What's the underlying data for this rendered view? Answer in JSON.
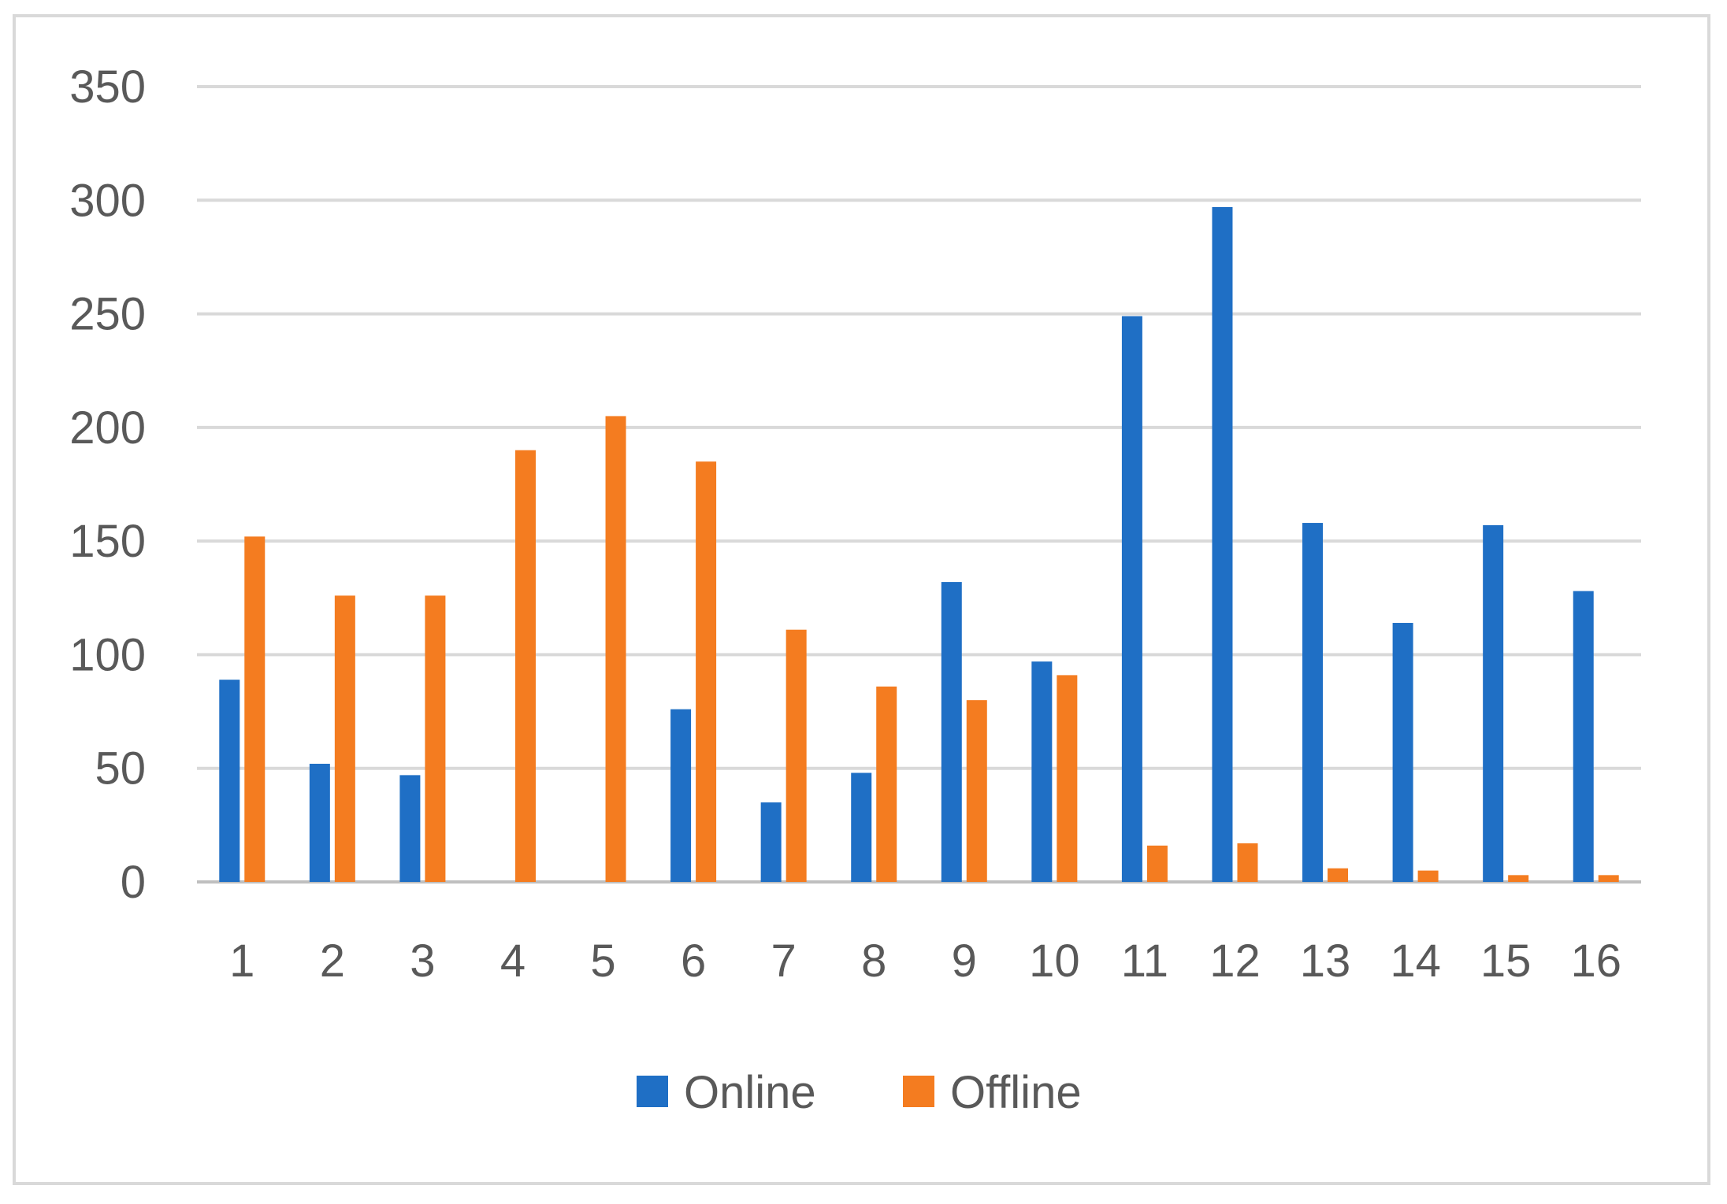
{
  "chart_data": {
    "type": "bar",
    "title": "",
    "xlabel": "",
    "ylabel": "",
    "categories": [
      "1",
      "2",
      "3",
      "4",
      "5",
      "6",
      "7",
      "8",
      "9",
      "10",
      "11",
      "12",
      "13",
      "14",
      "15",
      "16"
    ],
    "series": [
      {
        "name": "Online",
        "color": "#1f6fc5",
        "values": [
          89,
          52,
          47,
          0,
          0,
          76,
          35,
          48,
          132,
          97,
          249,
          297,
          158,
          114,
          157,
          128
        ]
      },
      {
        "name": "Offline",
        "color": "#f47c20",
        "values": [
          152,
          126,
          126,
          190,
          205,
          185,
          111,
          86,
          80,
          91,
          16,
          17,
          6,
          5,
          3,
          3
        ]
      }
    ],
    "ylim": [
      0,
      350
    ],
    "yticks": [
      0,
      50,
      100,
      150,
      200,
      250,
      300,
      350
    ],
    "grid": true,
    "legend_position": "bottom"
  }
}
